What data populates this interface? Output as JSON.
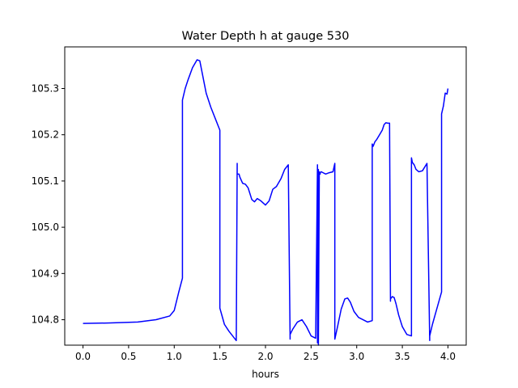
{
  "chart_data": {
    "type": "line",
    "title": "Water Depth h at gauge 530",
    "xlabel": "hours",
    "ylabel": "",
    "xlim": [
      -0.2,
      4.2
    ],
    "ylim": [
      104.745,
      105.39
    ],
    "xticks": [
      0.0,
      0.5,
      1.0,
      1.5,
      2.0,
      2.5,
      3.0,
      3.5,
      4.0
    ],
    "xtick_labels": [
      "0.0",
      "0.5",
      "1.0",
      "1.5",
      "2.0",
      "2.5",
      "3.0",
      "3.5",
      "4.0"
    ],
    "yticks": [
      104.8,
      104.9,
      105.0,
      105.1,
      105.2,
      105.3
    ],
    "ytick_labels": [
      "104.8",
      "104.9",
      "105.0",
      "105.1",
      "105.2",
      "105.3"
    ],
    "grid": false,
    "series": [
      {
        "color": "#0000ff",
        "x": [
          0.0,
          0.3,
          0.6,
          0.8,
          0.95,
          1.0,
          1.05,
          1.09,
          1.09,
          1.12,
          1.15,
          1.2,
          1.25,
          1.28,
          1.31,
          1.35,
          1.4,
          1.45,
          1.5,
          1.5,
          1.55,
          1.6,
          1.68,
          1.69,
          1.69,
          1.71,
          1.72,
          1.75,
          1.78,
          1.81,
          1.85,
          1.88,
          1.91,
          1.95,
          2.0,
          2.04,
          2.08,
          2.12,
          2.17,
          2.21,
          2.25,
          2.27,
          2.27,
          2.3,
          2.35,
          2.4,
          2.45,
          2.5,
          2.55,
          2.57,
          2.57,
          2.58,
          2.58,
          2.59,
          2.59,
          2.6,
          2.6,
          2.61,
          2.63,
          2.66,
          2.7,
          2.74,
          2.76,
          2.76,
          2.79,
          2.83,
          2.87,
          2.9,
          2.93,
          2.97,
          3.02,
          3.07,
          3.12,
          3.17,
          3.17,
          3.18,
          3.2,
          3.22,
          3.25,
          3.28,
          3.3,
          3.32,
          3.34,
          3.36,
          3.37,
          3.37,
          3.39,
          3.41,
          3.43,
          3.46,
          3.5,
          3.55,
          3.6,
          3.6,
          3.61,
          3.63,
          3.65,
          3.68,
          3.72,
          3.77,
          3.8,
          3.8,
          3.83,
          3.88,
          3.93,
          3.93,
          3.95,
          3.97,
          3.99,
          4.0
        ],
        "values": [
          104.792,
          104.793,
          104.795,
          104.8,
          104.808,
          104.82,
          104.86,
          104.89,
          105.275,
          105.3,
          105.318,
          105.345,
          105.362,
          105.36,
          105.33,
          105.29,
          105.26,
          105.235,
          105.21,
          104.825,
          104.79,
          104.775,
          104.755,
          105.138,
          105.115,
          105.115,
          105.108,
          105.095,
          105.093,
          105.085,
          105.06,
          105.055,
          105.062,
          105.057,
          105.048,
          105.057,
          105.082,
          105.088,
          105.105,
          105.125,
          105.135,
          104.758,
          104.768,
          104.78,
          104.795,
          104.8,
          104.785,
          104.765,
          104.76,
          105.135,
          104.75,
          105.125,
          104.745,
          105.12,
          105.12,
          105.115,
          105.118,
          105.12,
          105.118,
          105.115,
          105.118,
          105.12,
          105.138,
          104.758,
          104.785,
          104.823,
          104.845,
          104.847,
          104.838,
          104.818,
          104.805,
          104.8,
          104.795,
          104.798,
          105.18,
          105.175,
          105.185,
          105.19,
          105.2,
          105.21,
          105.222,
          105.226,
          105.225,
          105.225,
          104.84,
          104.845,
          104.85,
          104.848,
          104.835,
          104.81,
          104.785,
          104.768,
          104.765,
          105.15,
          105.14,
          105.135,
          105.125,
          105.12,
          105.122,
          105.138,
          104.755,
          104.765,
          104.79,
          104.825,
          104.86,
          105.245,
          105.262,
          105.29,
          105.288,
          105.3
        ]
      }
    ]
  }
}
